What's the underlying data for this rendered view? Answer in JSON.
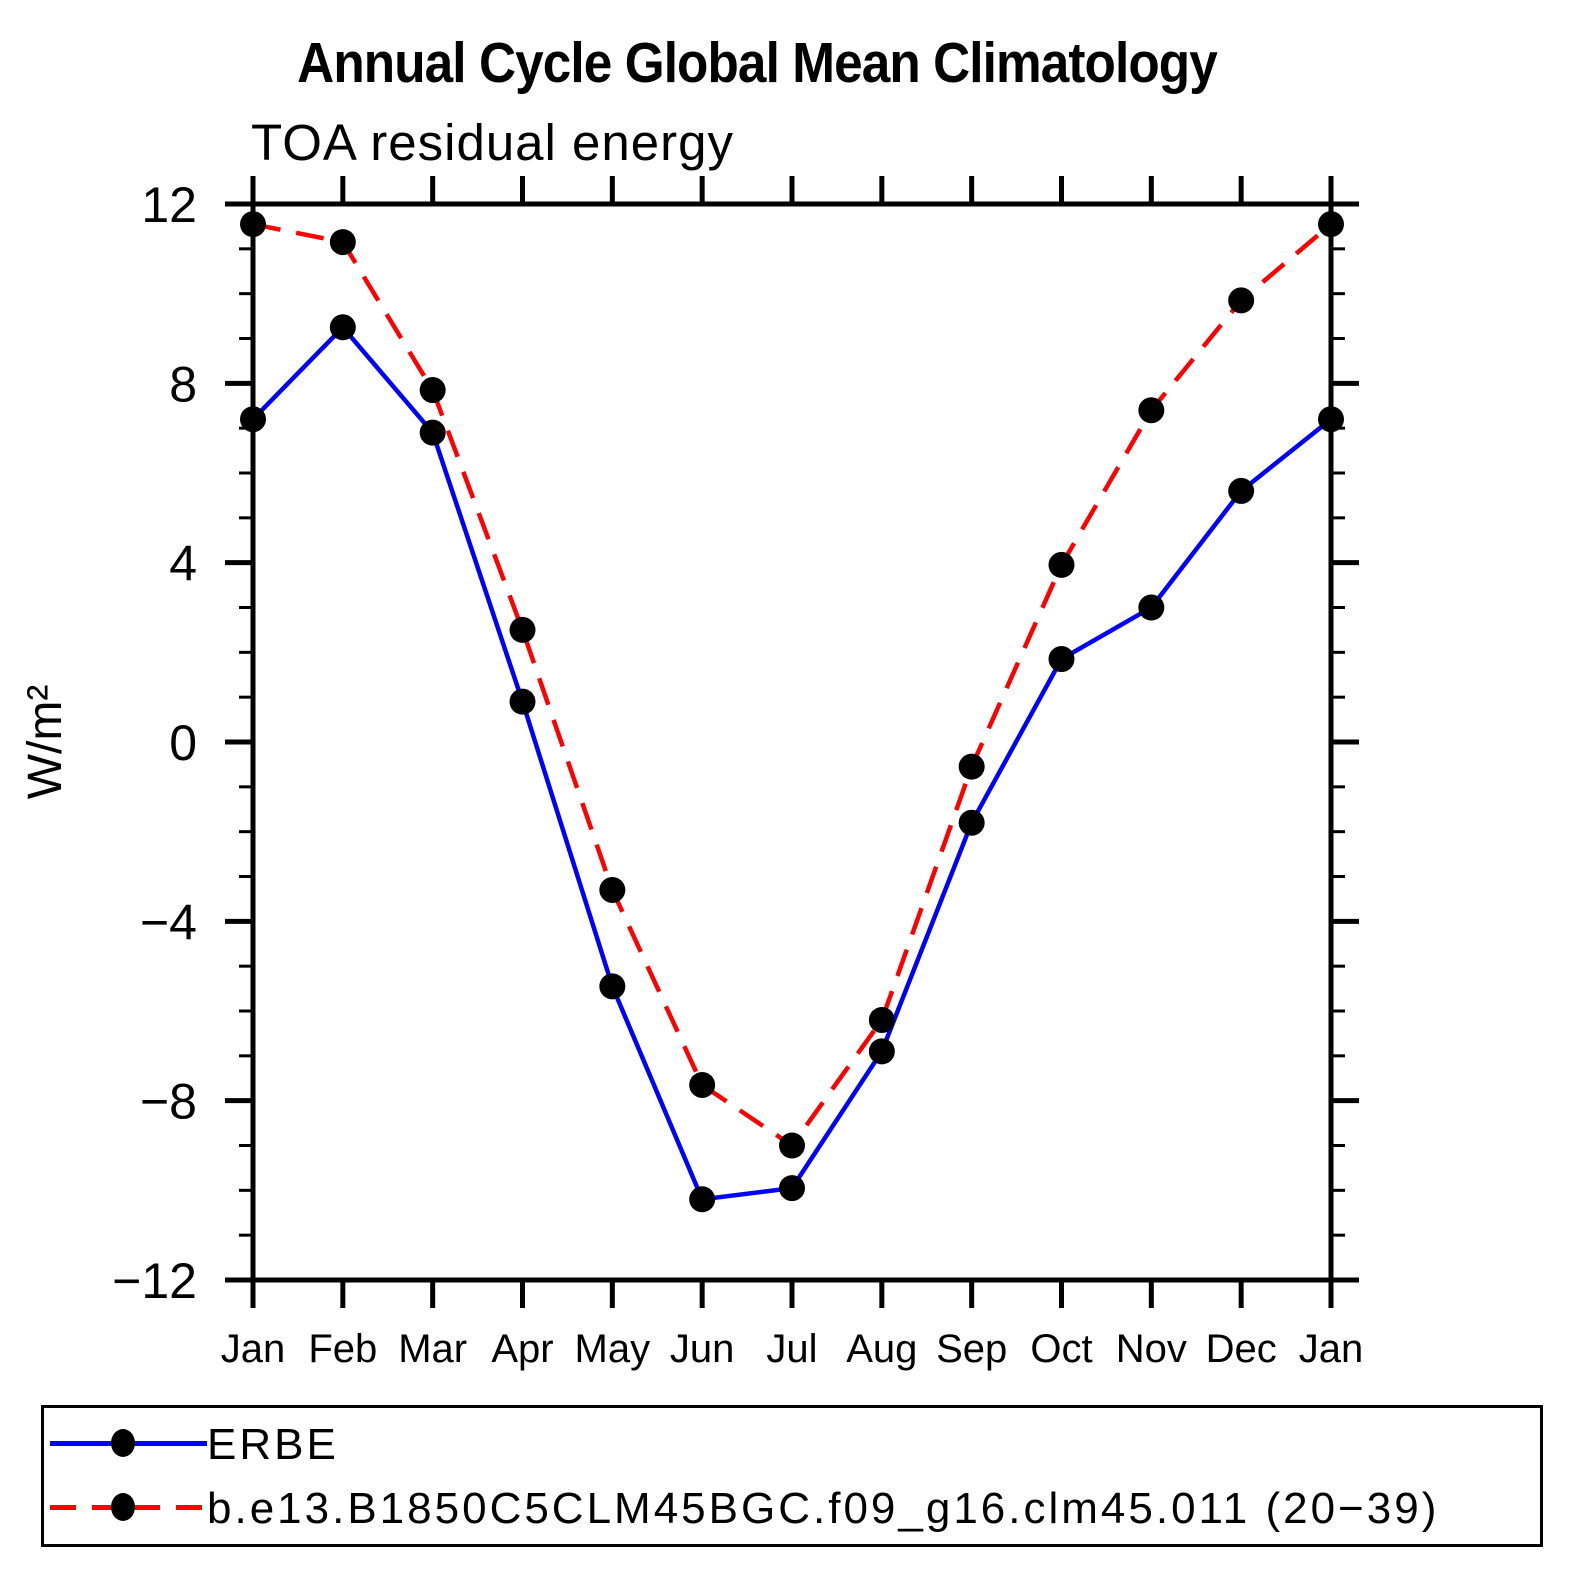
{
  "title": "Annual Cycle Global Mean Climatology",
  "chart_data": {
    "type": "line",
    "subtitle": "TOA residual energy",
    "ylabel": "W/m²",
    "xlabel": "",
    "x_labels": [
      "Jan",
      "Feb",
      "Mar",
      "Apr",
      "May",
      "Jun",
      "Jul",
      "Aug",
      "Sep",
      "Oct",
      "Nov",
      "Dec",
      "Jan"
    ],
    "ylim": [
      -12,
      12
    ],
    "ytick_major_step": 4,
    "ytick_minor_step": 1,
    "ytick_labels": [
      "−12",
      "−8",
      "−4",
      "0",
      "4",
      "8",
      "12"
    ],
    "grid": false,
    "legend_position": "bottom",
    "marker_color": "#000000",
    "series": [
      {
        "name": "ERBE",
        "color": "#0000ff",
        "style": "solid",
        "marker": "filled-circle",
        "values": [
          7.2,
          9.25,
          6.9,
          0.9,
          -5.45,
          -10.2,
          -9.95,
          -6.9,
          -1.8,
          1.85,
          3.0,
          5.6,
          7.2
        ]
      },
      {
        "name": "b.e13.B1850C5CLM45BGC.f09_g16.clm45.011 (20−39)",
        "color": "#ff0000",
        "style": "dashed",
        "marker": "filled-circle",
        "values": [
          11.55,
          11.15,
          7.85,
          2.5,
          -3.3,
          -7.65,
          -9.0,
          -6.2,
          -0.55,
          3.95,
          7.4,
          9.85,
          11.55
        ]
      }
    ]
  }
}
